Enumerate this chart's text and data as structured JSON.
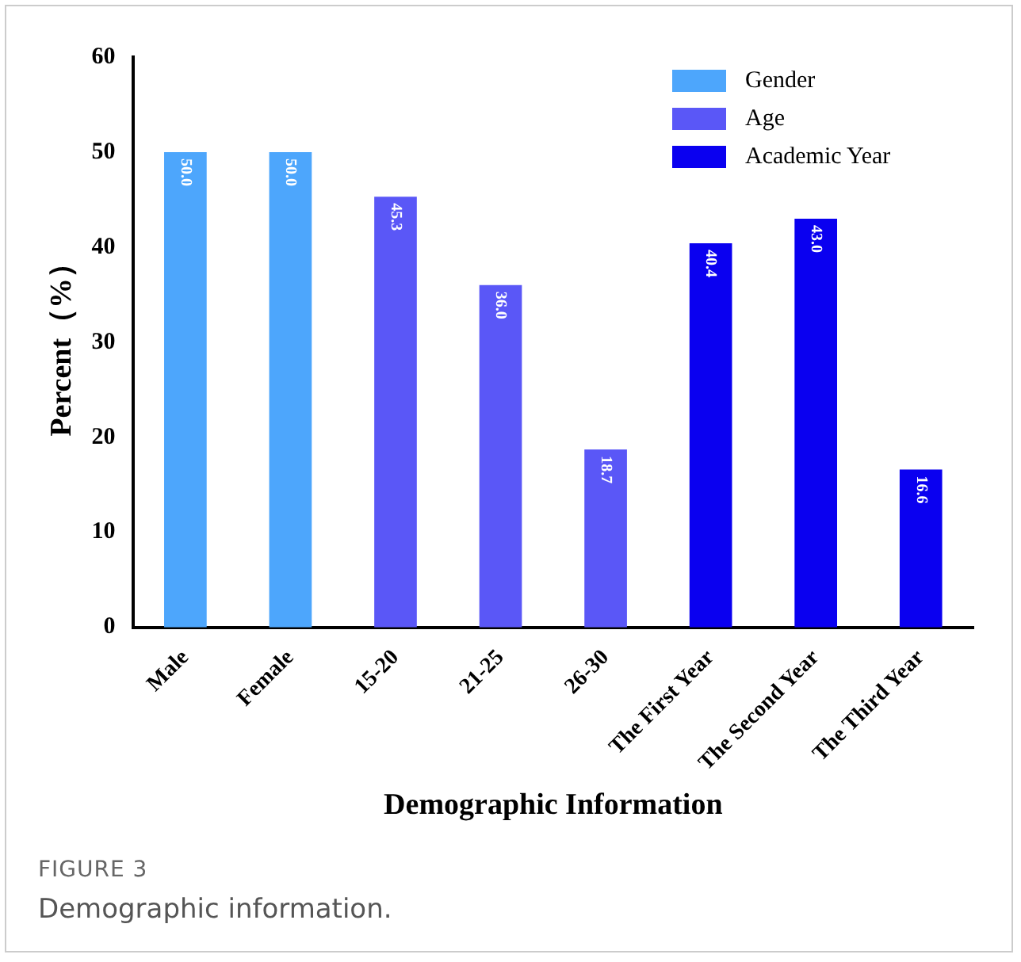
{
  "chart_data": {
    "type": "bar",
    "xlabel": "Demographic Information",
    "ylabel": "Percent（%）",
    "categories": [
      "Male",
      "Female",
      "15-20",
      "21-25",
      "26-30",
      "The First Year",
      "The Second Year",
      "The Third Year"
    ],
    "series": [
      {
        "name": "Gender",
        "color": "#4da6fc",
        "values": [
          50.0,
          50.0,
          null,
          null,
          null,
          null,
          null,
          null
        ],
        "value_labels": [
          "50.0",
          "50.0",
          null,
          null,
          null,
          null,
          null,
          null
        ]
      },
      {
        "name": "Age",
        "color": "#5a57f7",
        "values": [
          null,
          null,
          45.3,
          36.0,
          18.7,
          null,
          null,
          null
        ],
        "value_labels": [
          null,
          null,
          "45.3",
          "36.0",
          "18.7",
          null,
          null,
          null
        ]
      },
      {
        "name": "Academic Year",
        "color": "#0a00f0",
        "values": [
          null,
          null,
          null,
          null,
          null,
          40.4,
          43.0,
          16.6
        ],
        "value_labels": [
          null,
          null,
          null,
          null,
          null,
          "40.4",
          "43.0",
          "16.6"
        ]
      }
    ],
    "ylim": [
      0,
      60
    ],
    "yticks": [
      0,
      10,
      20,
      30,
      40,
      50,
      60
    ],
    "grid": false,
    "legend": "top right",
    "annotations": [
      "FIGURE 3",
      "Demographic information."
    ]
  }
}
